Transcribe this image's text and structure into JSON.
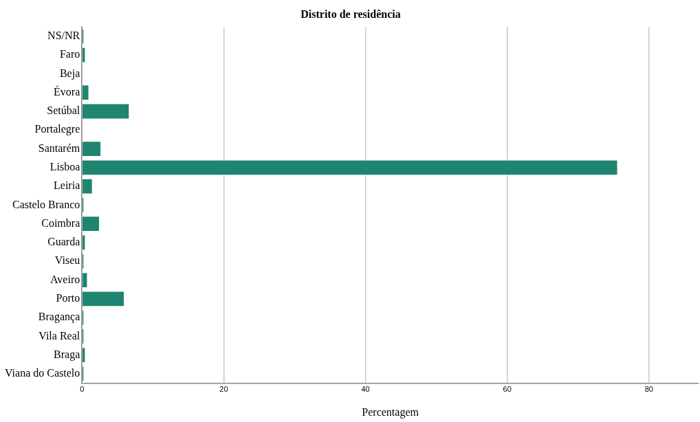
{
  "chart_data": {
    "type": "bar",
    "orientation": "horizontal",
    "title": "Distrito de residência",
    "xlabel": "Percentagem",
    "categories": [
      "NS/NR",
      "Faro",
      "Beja",
      "Évora",
      "Setúbal",
      "Portalegre",
      "Santarém",
      "Lisboa",
      "Leiria",
      "Castelo Branco",
      "Coimbra",
      "Guarda",
      "Viseu",
      "Aveiro",
      "Porto",
      "Bragança",
      "Vila Real",
      "Braga",
      "Viana do Castelo"
    ],
    "values": [
      0.3,
      0.5,
      0,
      1.0,
      6.7,
      0,
      2.7,
      75.6,
      1.5,
      0.3,
      2.5,
      0.5,
      0.3,
      0.8,
      6.0,
      0.3,
      0.3,
      0.5,
      0.3
    ],
    "color": "#1f8470",
    "xlim": [
      0,
      87
    ],
    "xticks": [
      0,
      20,
      40,
      60,
      80
    ],
    "grid": "x"
  }
}
